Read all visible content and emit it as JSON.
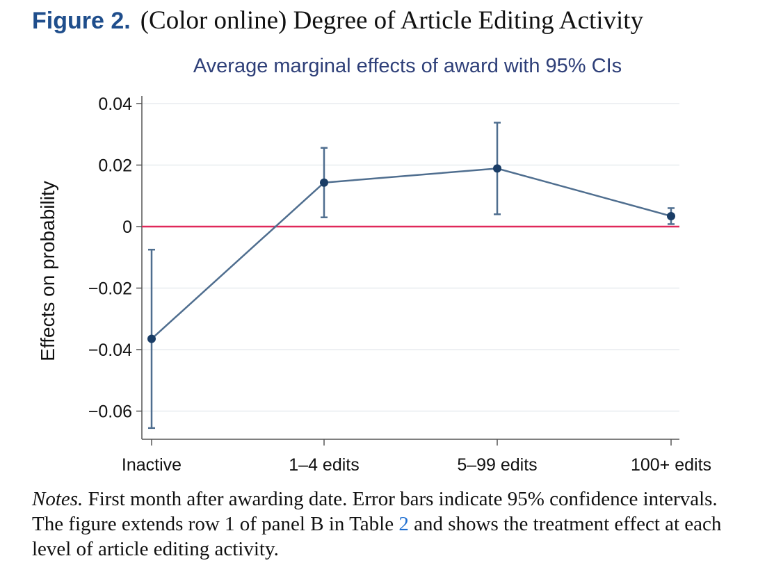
{
  "figure": {
    "label": "Figure 2.",
    "title": "(Color online) Degree of Article Editing Activity"
  },
  "notes": {
    "label": "Notes.",
    "text_before": "First month after awarding date. Error bars indicate 95% confidence intervals. The figure extends row 1 of panel B in Table",
    "table_ref": "2",
    "text_after": "and shows the treatment effect at each level of article editing activity."
  },
  "colors": {
    "title": "#2e3f78",
    "series": "#4f6e8f",
    "marker": "#1a3d66",
    "zero_line": "#e0285a",
    "grid": "#e8ecef",
    "axis": "#555555",
    "figure_label": "#1f4e8c",
    "table_ref": "#1f6fd1"
  },
  "chart_data": {
    "type": "line",
    "title": "Average marginal effects of award with 95% CIs",
    "xlabel": "",
    "ylabel": "Effects on probability",
    "categories": [
      "Inactive",
      "1–4 edits",
      "5–99 edits",
      "100+ edits"
    ],
    "series": [
      {
        "values": [
          -0.0365,
          0.0143,
          0.0189,
          0.0034
        ],
        "ci_low": [
          -0.0655,
          0.003,
          0.004,
          0.0008
        ],
        "ci_high": [
          -0.0075,
          0.0256,
          0.0338,
          0.006
        ]
      }
    ],
    "reference_line": 0,
    "ylim": [
      -0.07,
      0.042
    ],
    "yticks": [
      0.04,
      0.02,
      0,
      -0.02,
      -0.04,
      -0.06
    ],
    "ytick_labels": [
      "0.04",
      "0.02",
      "0",
      "−0.02",
      "−0.04",
      "−0.06"
    ],
    "grid": true,
    "legend": "none"
  }
}
